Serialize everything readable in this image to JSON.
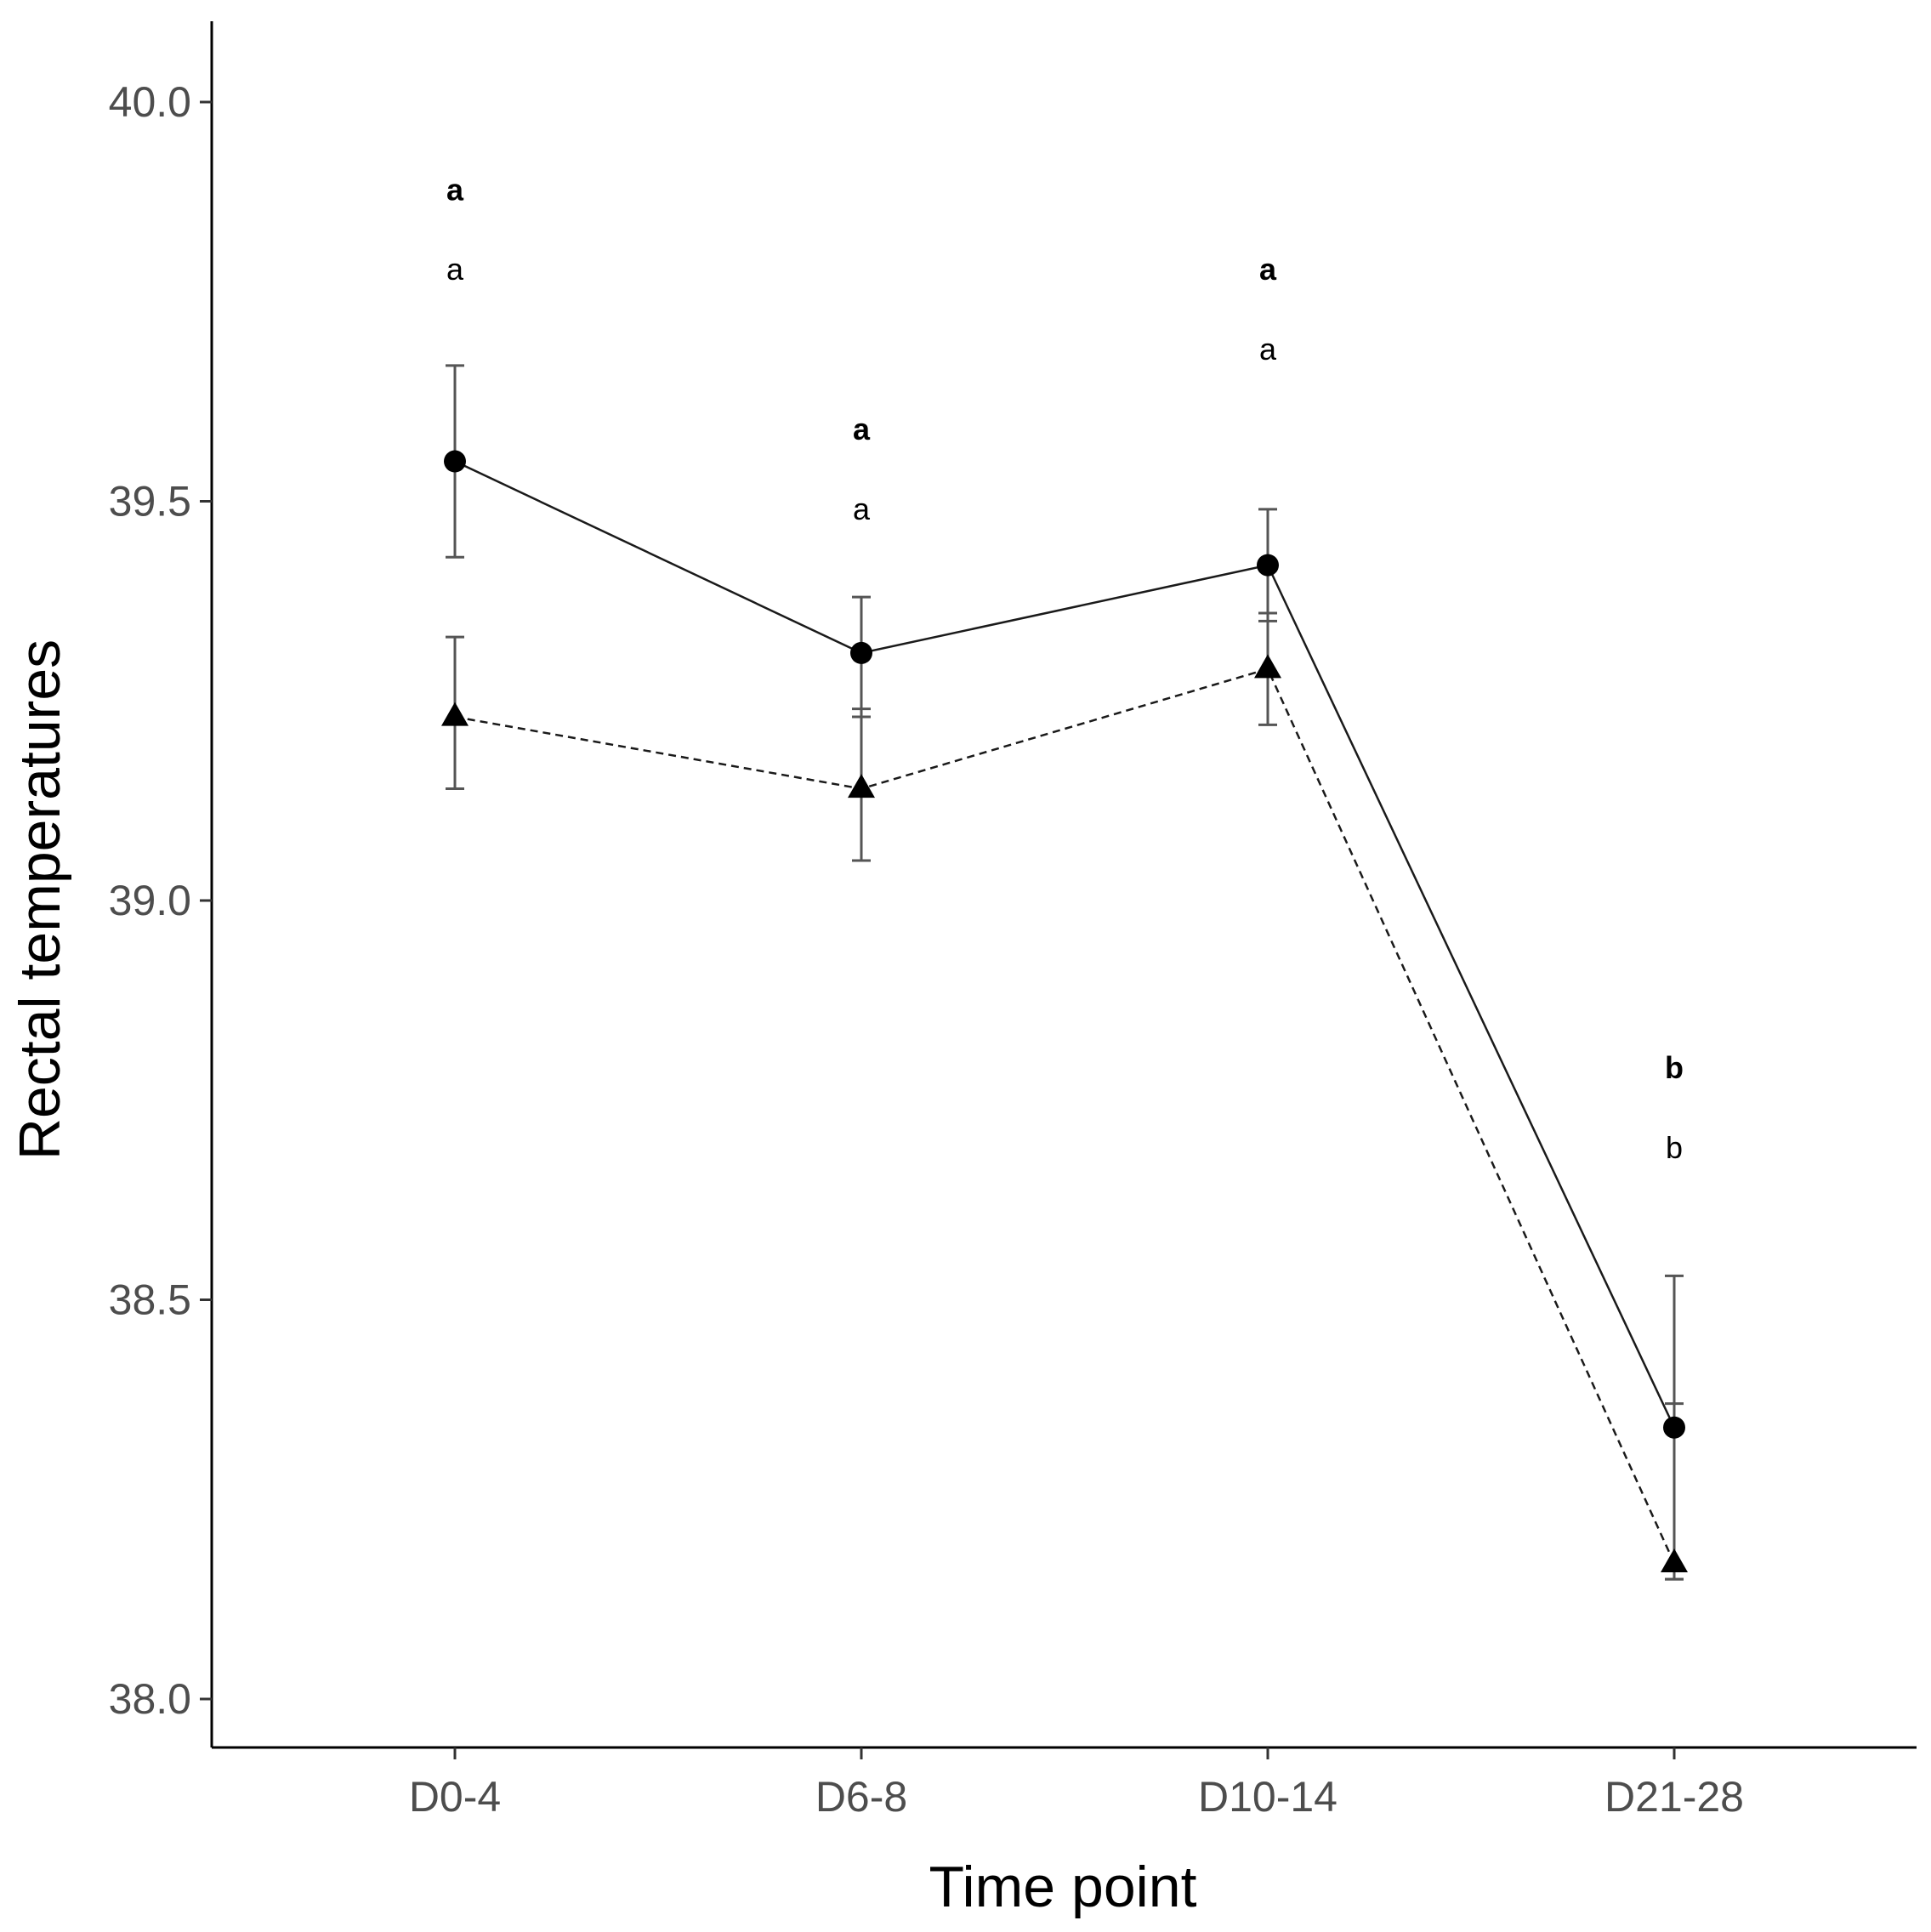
{
  "chart_data": {
    "type": "line",
    "xlabel": "Time point",
    "ylabel": "Rectal temperatures",
    "categories": [
      "D0-4",
      "D6-8",
      "D10-14",
      "D21-28"
    ],
    "ylim": [
      37.9,
      40.1
    ],
    "yticks": [
      38.0,
      38.5,
      39.0,
      39.5,
      40.0
    ],
    "ytick_labels": [
      "38.0",
      "38.5",
      "39.0",
      "39.5",
      "40.0"
    ],
    "grid": false,
    "legend": "none",
    "series": [
      {
        "marker": "circle",
        "line_style": "solid",
        "values": [
          39.55,
          39.31,
          39.42,
          38.34
        ],
        "error_low": [
          39.43,
          39.23,
          39.35,
          38.15
        ],
        "error_high": [
          39.67,
          39.38,
          39.49,
          38.53
        ]
      },
      {
        "marker": "triangle",
        "line_style": "dashed",
        "values": [
          39.23,
          39.14,
          39.29,
          38.17
        ],
        "error_low": [
          39.14,
          39.05,
          39.22,
          38.15
        ],
        "error_high": [
          39.33,
          39.24,
          39.36,
          38.37
        ]
      }
    ],
    "annotations": [
      {
        "category": "D0-4",
        "bold_letter": "a",
        "bold_y": 39.89,
        "letter": "a",
        "letter_y": 39.79
      },
      {
        "category": "D6-8",
        "bold_letter": "a",
        "bold_y": 39.59,
        "letter": "a",
        "letter_y": 39.49
      },
      {
        "category": "D10-14",
        "bold_letter": "a",
        "bold_y": 39.79,
        "letter": "a",
        "letter_y": 39.69
      },
      {
        "category": "D21-28",
        "bold_letter": "b",
        "bold_y": 38.79,
        "letter": "b",
        "letter_y": 38.69
      }
    ]
  }
}
